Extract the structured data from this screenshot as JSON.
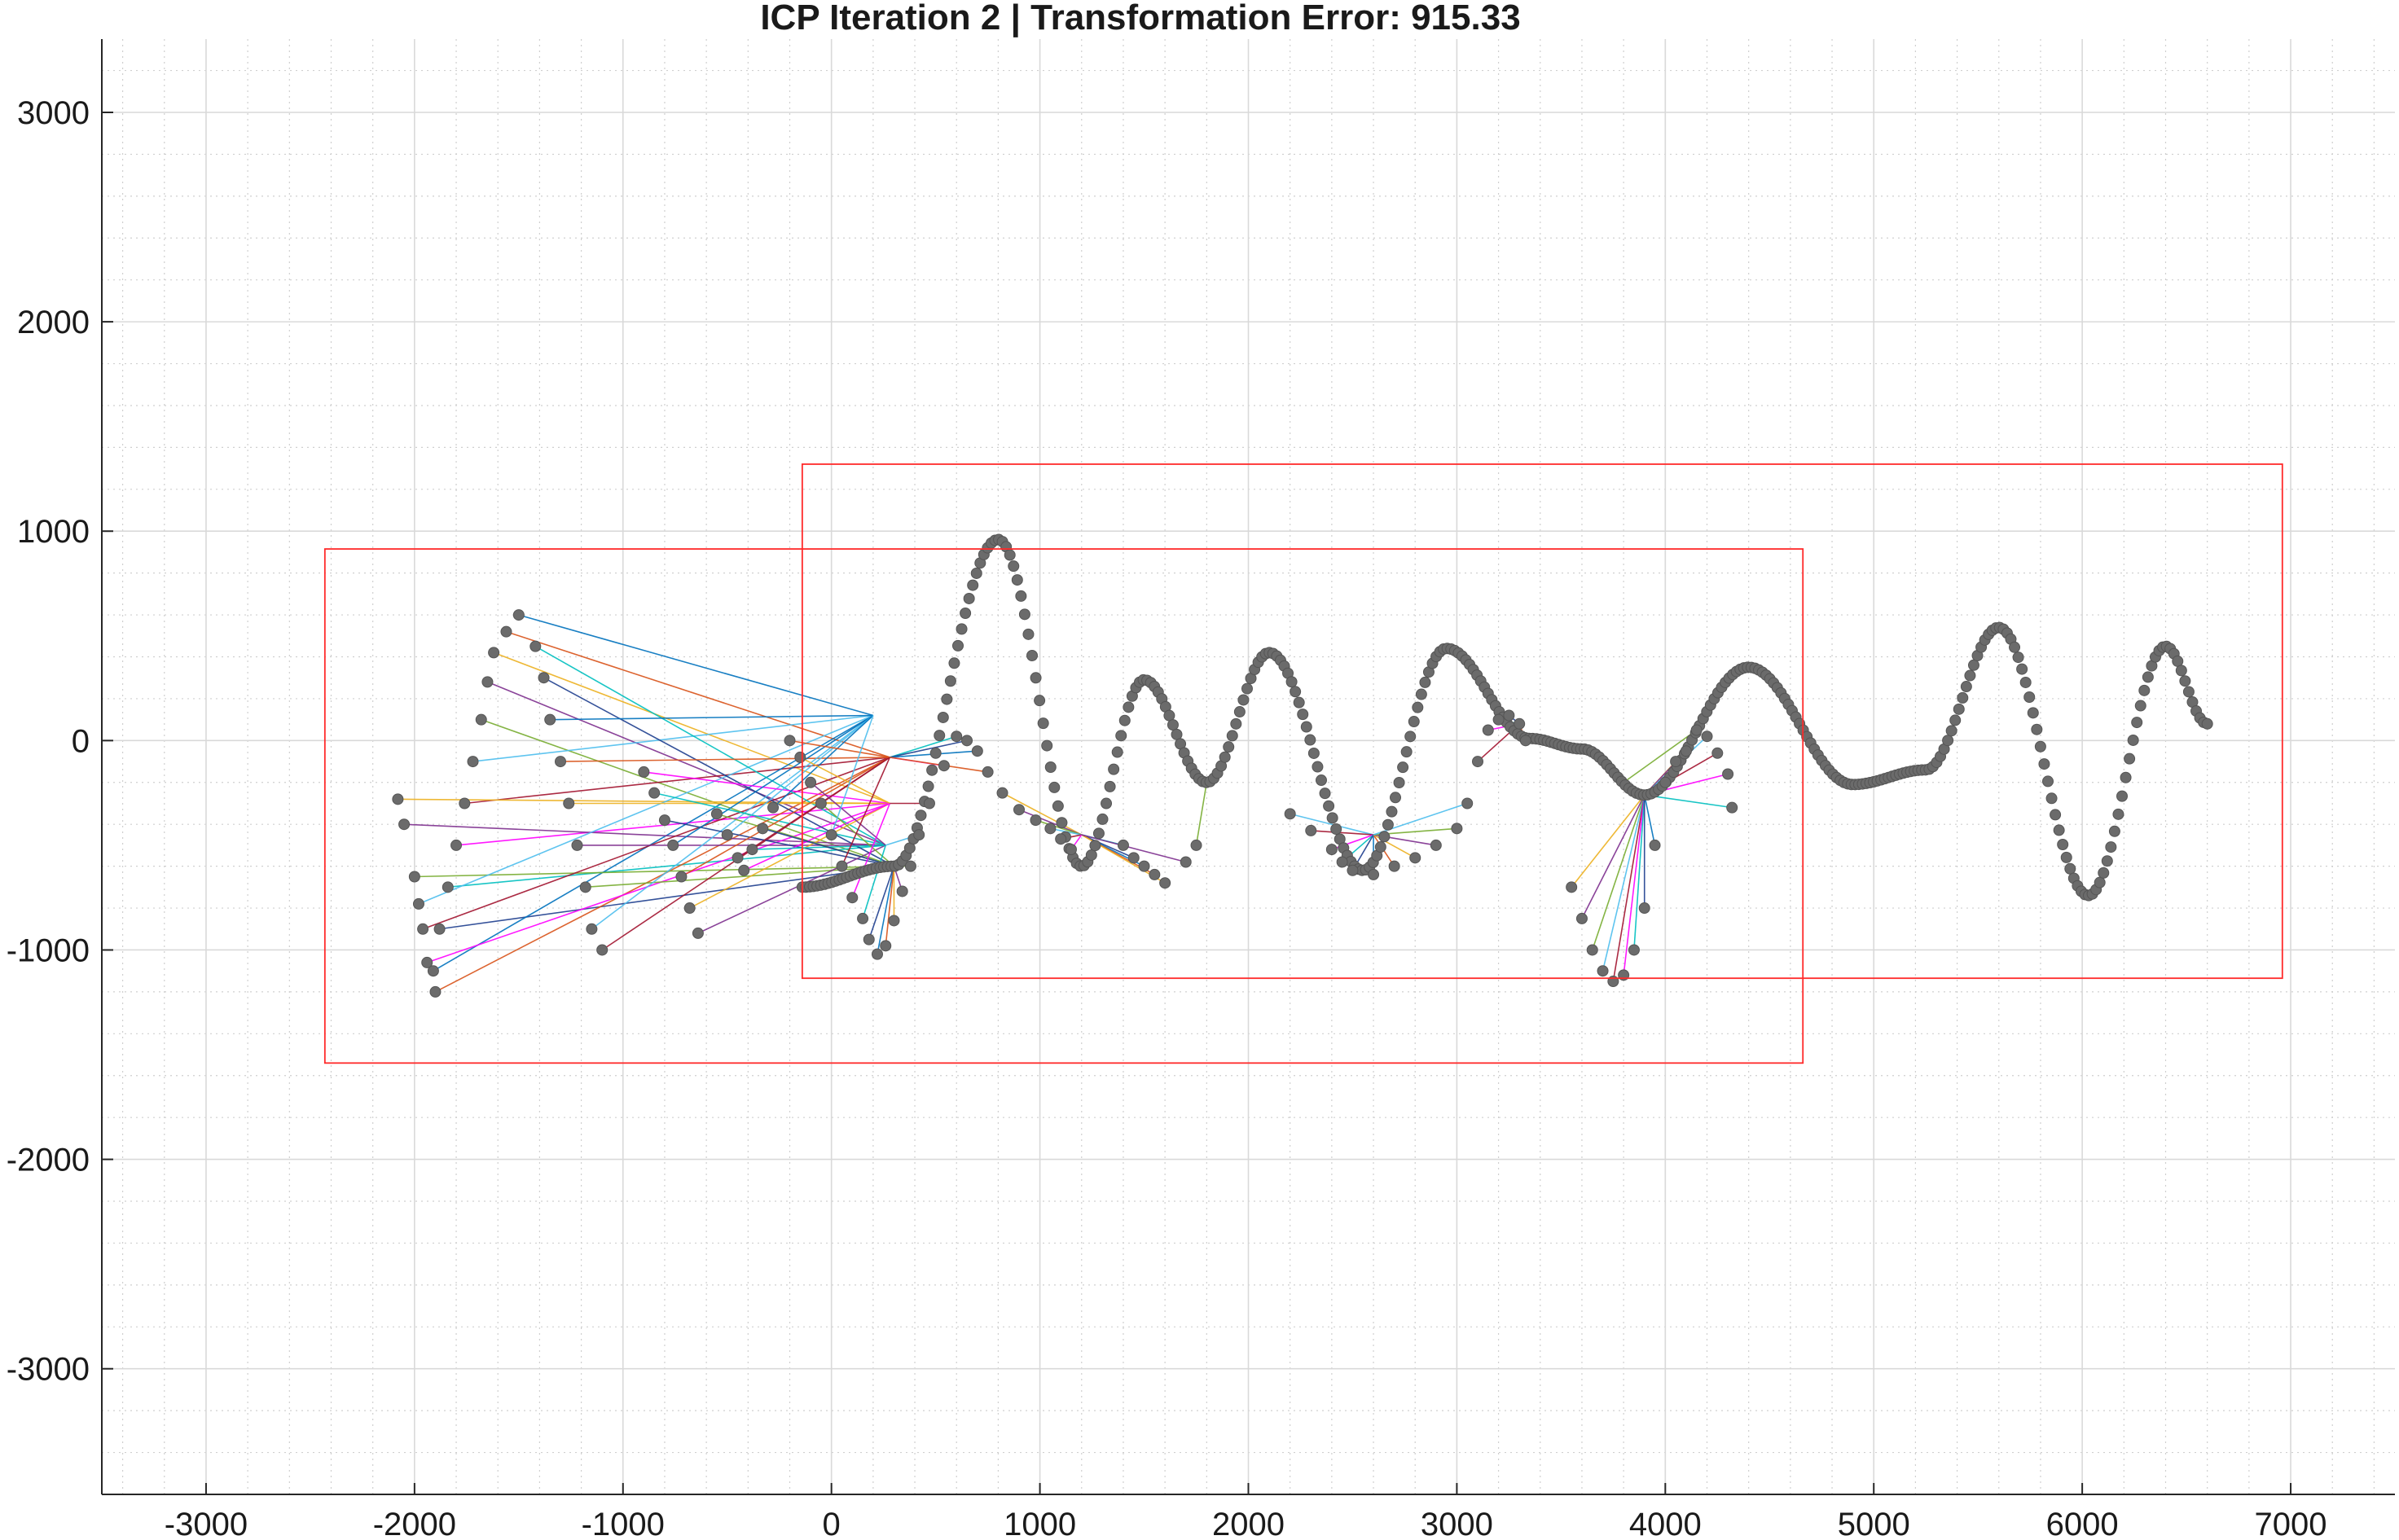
{
  "chart_data": {
    "type": "scatter",
    "title": "ICP Iteration 2 | Transformation Error: 915.33",
    "xlabel": "",
    "ylabel": "",
    "xlim": [
      -3500,
      7500
    ],
    "ylim": [
      -3600,
      3350
    ],
    "x_ticks": [
      -3000,
      -2000,
      -1000,
      0,
      1000,
      2000,
      3000,
      4000,
      5000,
      6000,
      7000
    ],
    "y_ticks": [
      3000,
      2000,
      1000,
      0,
      -1000,
      -2000,
      -3000
    ],
    "grid": true,
    "minor_grid": true,
    "bounding_boxes": [
      {
        "x_min": -2430,
        "x_max": 4660,
        "y_min": -1540,
        "y_max": 915
      },
      {
        "x_min": -140,
        "x_max": 6960,
        "y_min": -1135,
        "y_max": 1320
      }
    ],
    "reference_curve": {
      "x_start": -140,
      "x_end": 6600,
      "point_count": 380,
      "point_color": "#6b6b6b",
      "segments": [
        {
          "x": -140,
          "y": -700
        },
        {
          "x": 300,
          "y": -600
        },
        {
          "x": 800,
          "y": 960
        },
        {
          "x": 1200,
          "y": -600
        },
        {
          "x": 1500,
          "y": 290
        },
        {
          "x": 1800,
          "y": -200
        },
        {
          "x": 2100,
          "y": 420
        },
        {
          "x": 2550,
          "y": -620
        },
        {
          "x": 2950,
          "y": 440
        },
        {
          "x": 3350,
          "y": 10
        },
        {
          "x": 3600,
          "y": -40
        },
        {
          "x": 3900,
          "y": -260
        },
        {
          "x": 4400,
          "y": 350
        },
        {
          "x": 4900,
          "y": -210
        },
        {
          "x": 5250,
          "y": -140
        },
        {
          "x": 5600,
          "y": 540
        },
        {
          "x": 6030,
          "y": -740
        },
        {
          "x": 6400,
          "y": 450
        },
        {
          "x": 6600,
          "y": 80
        }
      ]
    },
    "source_points": {
      "point_color": "#6b6b6b",
      "points": [
        [
          -1500,
          600
        ],
        [
          -1560,
          520
        ],
        [
          -1620,
          420
        ],
        [
          -1650,
          280
        ],
        [
          -1680,
          100
        ],
        [
          -1720,
          -100
        ],
        [
          -1760,
          -300
        ],
        [
          -1800,
          -500
        ],
        [
          -1840,
          -700
        ],
        [
          -1880,
          -900
        ],
        [
          -1910,
          -1100
        ],
        [
          -1900,
          -1200
        ],
        [
          -2080,
          -280
        ],
        [
          -2050,
          -400
        ],
        [
          -2000,
          -650
        ],
        [
          -1980,
          -780
        ],
        [
          -1960,
          -900
        ],
        [
          -1940,
          -1060
        ],
        [
          -1420,
          450
        ],
        [
          -1380,
          300
        ],
        [
          -1350,
          100
        ],
        [
          -1300,
          -100
        ],
        [
          -1260,
          -300
        ],
        [
          -1220,
          -500
        ],
        [
          -1180,
          -700
        ],
        [
          -1150,
          -900
        ],
        [
          -1100,
          -1000
        ],
        [
          -900,
          -150
        ],
        [
          -850,
          -250
        ],
        [
          -800,
          -380
        ],
        [
          -760,
          -500
        ],
        [
          -720,
          -650
        ],
        [
          -680,
          -800
        ],
        [
          -640,
          -920
        ],
        [
          -550,
          -350
        ],
        [
          -500,
          -450
        ],
        [
          -450,
          -560
        ],
        [
          -420,
          -620
        ],
        [
          -380,
          -520
        ],
        [
          -330,
          -420
        ],
        [
          -280,
          -320
        ],
        [
          -200,
          0
        ],
        [
          -150,
          -80
        ],
        [
          -100,
          -200
        ],
        [
          -50,
          -300
        ],
        [
          0,
          -450
        ],
        [
          50,
          -600
        ],
        [
          100,
          -750
        ],
        [
          150,
          -850
        ],
        [
          180,
          -950
        ],
        [
          220,
          -1020
        ],
        [
          260,
          -980
        ],
        [
          300,
          -860
        ],
        [
          340,
          -720
        ],
        [
          380,
          -600
        ],
        [
          420,
          -450
        ],
        [
          470,
          -300
        ],
        [
          540,
          -120
        ],
        [
          600,
          20
        ],
        [
          650,
          0
        ],
        [
          700,
          -50
        ],
        [
          750,
          -150
        ],
        [
          820,
          -250
        ],
        [
          900,
          -330
        ],
        [
          980,
          -380
        ],
        [
          1050,
          -420
        ],
        [
          1100,
          -470
        ],
        [
          1150,
          -520
        ],
        [
          1400,
          -500
        ],
        [
          1450,
          -560
        ],
        [
          1500,
          -600
        ],
        [
          1550,
          -640
        ],
        [
          1600,
          -680
        ],
        [
          1700,
          -580
        ],
        [
          1750,
          -500
        ],
        [
          2200,
          -350
        ],
        [
          2300,
          -430
        ],
        [
          2400,
          -520
        ],
        [
          2450,
          -580
        ],
        [
          2500,
          -620
        ],
        [
          2600,
          -640
        ],
        [
          2700,
          -600
        ],
        [
          2800,
          -560
        ],
        [
          2900,
          -500
        ],
        [
          3000,
          -420
        ],
        [
          3050,
          -300
        ],
        [
          3100,
          -100
        ],
        [
          3150,
          50
        ],
        [
          3200,
          100
        ],
        [
          3250,
          120
        ],
        [
          3300,
          80
        ],
        [
          3330,
          0
        ],
        [
          3550,
          -700
        ],
        [
          3600,
          -850
        ],
        [
          3650,
          -1000
        ],
        [
          3700,
          -1100
        ],
        [
          3750,
          -1150
        ],
        [
          3800,
          -1120
        ],
        [
          3850,
          -1000
        ],
        [
          3900,
          -800
        ],
        [
          3950,
          -500
        ],
        [
          4000,
          -200
        ],
        [
          4050,
          -100
        ],
        [
          4100,
          -50
        ],
        [
          4150,
          50
        ],
        [
          4200,
          20
        ],
        [
          4250,
          -60
        ],
        [
          4300,
          -160
        ],
        [
          4320,
          -320
        ]
      ]
    },
    "correspondence_lines": {
      "count": 110,
      "target_points": [
        [
          200,
          120
        ],
        [
          280,
          -80
        ],
        [
          280,
          -300
        ],
        [
          260,
          -500
        ],
        [
          300,
          -600
        ],
        [
          3900,
          -260
        ],
        [
          3800,
          -200
        ],
        [
          3300,
          80
        ],
        [
          1800,
          -200
        ],
        [
          2100,
          0
        ],
        [
          1200,
          -450
        ],
        [
          2600,
          -450
        ]
      ],
      "colors": [
        "#0072bd",
        "#d95319",
        "#edb120",
        "#7e2f8e",
        "#77ac30",
        "#4dbeee",
        "#a2142f",
        "#ff00ff",
        "#00bfbf",
        "#1f3f8f"
      ]
    }
  }
}
